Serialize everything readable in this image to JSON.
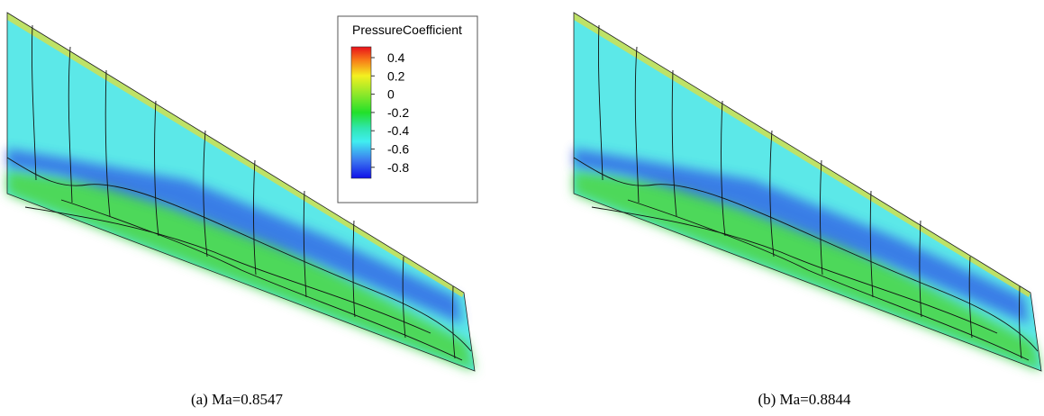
{
  "legend": {
    "title": "PressureCoefficient",
    "labels": [
      "0.4",
      "0.2",
      "0",
      "-0.2",
      "-0.4",
      "-0.6",
      "-0.8"
    ]
  },
  "captions": [
    "(a) Ma=0.8547",
    "(b) Ma=0.8844"
  ]
}
